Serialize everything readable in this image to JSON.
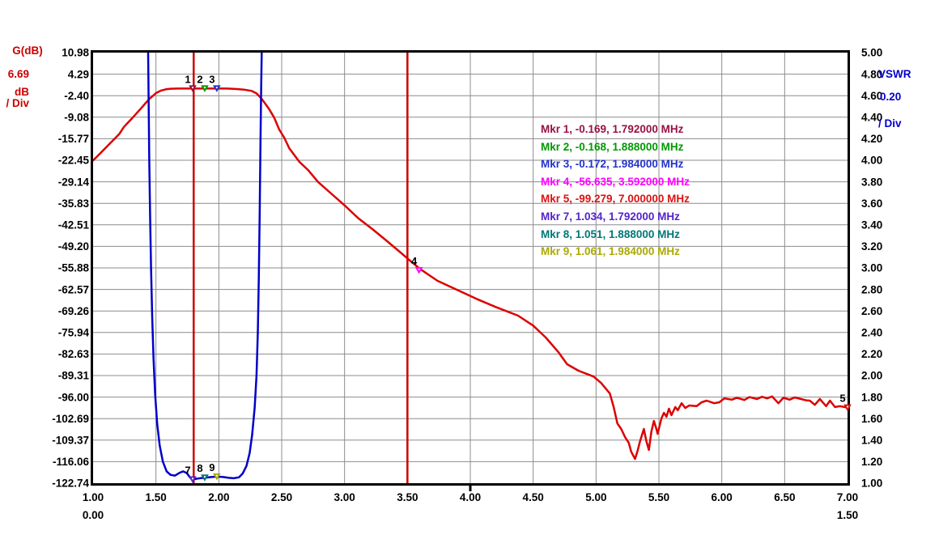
{
  "axes": {
    "left": {
      "title": "G(dB)",
      "per_div": "6.69",
      "unit": "dB",
      "div_label": "/ Div",
      "color": "#cc0000",
      "ticks": [
        "10.98",
        "4.29",
        "-2.40",
        "-9.08",
        "-15.77",
        "-22.45",
        "-29.14",
        "-35.83",
        "-42.51",
        "-49.20",
        "-55.88",
        "-62.57",
        "-69.26",
        "-75.94",
        "-82.63",
        "-89.31",
        "-96.00",
        "-102.69",
        "-109.37",
        "-116.06",
        "-122.74"
      ]
    },
    "right": {
      "title": "VSWR",
      "per_div": "0.20",
      "div_label": "/ Div",
      "color": "#0000cc",
      "ticks": [
        "5.00",
        "4.80",
        "4.60",
        "4.40",
        "4.20",
        "4.00",
        "3.80",
        "3.60",
        "3.40",
        "3.20",
        "3.00",
        "2.80",
        "2.60",
        "2.40",
        "2.20",
        "2.00",
        "1.80",
        "1.60",
        "1.40",
        "1.20",
        "1.00"
      ]
    },
    "bottom": {
      "ticks": [
        "1.00",
        "1.50",
        "2.00",
        "2.50",
        "3.00",
        "3.50",
        "4.00",
        "4.50",
        "5.00",
        "5.50",
        "6.00",
        "6.50",
        "7.00"
      ],
      "secondary_start": "0.00",
      "secondary_end": "1.50",
      "center_tick_value": "4.00"
    }
  },
  "legend": {
    "items": [
      {
        "text": "Mkr 1, -0.169, 1.792000 MHz",
        "color": "#991144"
      },
      {
        "text": "Mkr 2, -0.168, 1.888000 MHz",
        "color": "#009900"
      },
      {
        "text": "Mkr 3, -0.172, 1.984000 MHz",
        "color": "#2233cc"
      },
      {
        "text": "Mkr 4, -56.635, 3.592000 MHz",
        "color": "#ff00ff"
      },
      {
        "text": "Mkr 5, -99.279, 7.000000 MHz",
        "color": "#dd1111"
      },
      {
        "text": "Mkr 7, 1.034, 1.792000 MHz",
        "color": "#5522cc"
      },
      {
        "text": "Mkr 8, 1.051, 1.888000 MHz",
        "color": "#007777"
      },
      {
        "text": "Mkr 9, 1.061, 1.984000 MHz",
        "color": "#aaaa00"
      }
    ]
  },
  "chart_data": {
    "type": "line",
    "title": "",
    "x_axis": {
      "unit": "MHz",
      "min": 1.0,
      "max": 7.0,
      "tick_step": 0.5,
      "center_tick": 4.0
    },
    "y_left": {
      "label": "G(dB)",
      "min": -122.74,
      "max": 10.98,
      "per_div": 6.69,
      "divisions": 20
    },
    "y_right": {
      "label": "VSWR",
      "min": 1.0,
      "max": 5.0,
      "per_div": 0.2,
      "divisions": 20
    },
    "grid": {
      "color": "#8c8c8c",
      "on": true
    },
    "border_color": "#000000",
    "vlines": [
      {
        "x": 1.8,
        "color": "#cc0000"
      },
      {
        "x": 3.5,
        "color": "#cc0000"
      }
    ],
    "series": [
      {
        "name": "gain_db",
        "axis": "left",
        "color": "#dd0000",
        "width": 2.5,
        "points": [
          [
            1.0,
            -22.5
          ],
          [
            1.06,
            -20.2
          ],
          [
            1.12,
            -17.8
          ],
          [
            1.18,
            -15.4
          ],
          [
            1.21,
            -14.2
          ],
          [
            1.245,
            -12.1
          ],
          [
            1.31,
            -9.4
          ],
          [
            1.375,
            -6.6
          ],
          [
            1.42,
            -4.6
          ],
          [
            1.45,
            -3.3
          ],
          [
            1.48,
            -2.3
          ],
          [
            1.5,
            -1.6
          ],
          [
            1.54,
            -0.8
          ],
          [
            1.58,
            -0.4
          ],
          [
            1.62,
            -0.22
          ],
          [
            1.68,
            -0.18
          ],
          [
            1.74,
            -0.17
          ],
          [
            1.792,
            -0.169
          ],
          [
            1.888,
            -0.168
          ],
          [
            1.984,
            -0.172
          ],
          [
            2.06,
            -0.19
          ],
          [
            2.13,
            -0.3
          ],
          [
            2.2,
            -0.5
          ],
          [
            2.26,
            -0.9
          ],
          [
            2.3,
            -1.7
          ],
          [
            2.33,
            -2.9
          ],
          [
            2.36,
            -4.4
          ],
          [
            2.4,
            -6.6
          ],
          [
            2.44,
            -9.2
          ],
          [
            2.48,
            -12.9
          ],
          [
            2.52,
            -15.4
          ],
          [
            2.56,
            -18.7
          ],
          [
            2.64,
            -22.9
          ],
          [
            2.71,
            -25.5
          ],
          [
            2.79,
            -29.2
          ],
          [
            2.9,
            -33.0
          ],
          [
            3.01,
            -36.8
          ],
          [
            3.11,
            -40.5
          ],
          [
            3.22,
            -43.8
          ],
          [
            3.33,
            -47.3
          ],
          [
            3.43,
            -50.6
          ],
          [
            3.52,
            -53.6
          ],
          [
            3.6,
            -56.2
          ],
          [
            3.74,
            -59.9
          ],
          [
            3.9,
            -62.8
          ],
          [
            4.05,
            -65.5
          ],
          [
            4.2,
            -68.0
          ],
          [
            4.38,
            -70.7
          ],
          [
            4.5,
            -73.8
          ],
          [
            4.6,
            -77.5
          ],
          [
            4.7,
            -82.0
          ],
          [
            4.77,
            -85.8
          ],
          [
            4.86,
            -87.8
          ],
          [
            4.98,
            -89.6
          ],
          [
            5.04,
            -91.6
          ],
          [
            5.11,
            -94.9
          ],
          [
            5.14,
            -99.1
          ],
          [
            5.17,
            -104.2
          ],
          [
            5.2,
            -105.9
          ],
          [
            5.23,
            -108.4
          ],
          [
            5.26,
            -110.2
          ],
          [
            5.28,
            -113.0
          ],
          [
            5.31,
            -115.2
          ],
          [
            5.33,
            -112.7
          ],
          [
            5.35,
            -109.7
          ],
          [
            5.38,
            -105.9
          ],
          [
            5.4,
            -109.7
          ],
          [
            5.42,
            -112.4
          ],
          [
            5.44,
            -106.7
          ],
          [
            5.46,
            -103.4
          ],
          [
            5.48,
            -105.9
          ],
          [
            5.49,
            -107.4
          ],
          [
            5.52,
            -102.6
          ],
          [
            5.54,
            -100.9
          ],
          [
            5.56,
            -102.1
          ],
          [
            5.58,
            -99.6
          ],
          [
            5.6,
            -101.6
          ],
          [
            5.63,
            -99.1
          ],
          [
            5.65,
            -100.1
          ],
          [
            5.68,
            -97.9
          ],
          [
            5.71,
            -99.4
          ],
          [
            5.74,
            -98.6
          ],
          [
            5.8,
            -98.8
          ],
          [
            5.84,
            -97.6
          ],
          [
            5.88,
            -97.1
          ],
          [
            5.94,
            -97.9
          ],
          [
            5.98,
            -97.6
          ],
          [
            6.02,
            -96.4
          ],
          [
            6.08,
            -96.8
          ],
          [
            6.12,
            -96.2
          ],
          [
            6.18,
            -96.9
          ],
          [
            6.22,
            -96.0
          ],
          [
            6.28,
            -96.6
          ],
          [
            6.32,
            -95.9
          ],
          [
            6.36,
            -96.4
          ],
          [
            6.4,
            -95.8
          ],
          [
            6.45,
            -97.9
          ],
          [
            6.49,
            -96.2
          ],
          [
            6.54,
            -96.8
          ],
          [
            6.58,
            -96.1
          ],
          [
            6.63,
            -96.6
          ],
          [
            6.67,
            -97.0
          ],
          [
            6.7,
            -97.1
          ],
          [
            6.74,
            -98.4
          ],
          [
            6.78,
            -96.6
          ],
          [
            6.83,
            -98.8
          ],
          [
            6.86,
            -97.1
          ],
          [
            6.9,
            -99.1
          ],
          [
            6.94,
            -98.8
          ],
          [
            7.0,
            -99.279
          ]
        ]
      },
      {
        "name": "vswr",
        "axis": "right",
        "color": "#0000c8",
        "width": 2.5,
        "points": [
          [
            1.438,
            5.0
          ],
          [
            1.442,
            4.5
          ],
          [
            1.447,
            4.0
          ],
          [
            1.453,
            3.5
          ],
          [
            1.461,
            3.0
          ],
          [
            1.47,
            2.55
          ],
          [
            1.481,
            2.15
          ],
          [
            1.494,
            1.82
          ],
          [
            1.51,
            1.55
          ],
          [
            1.53,
            1.35
          ],
          [
            1.555,
            1.2
          ],
          [
            1.585,
            1.11
          ],
          [
            1.615,
            1.078
          ],
          [
            1.65,
            1.07
          ],
          [
            1.685,
            1.095
          ],
          [
            1.715,
            1.11
          ],
          [
            1.745,
            1.095
          ],
          [
            1.77,
            1.055
          ],
          [
            1.792,
            1.034
          ],
          [
            1.83,
            1.043
          ],
          [
            1.86,
            1.048
          ],
          [
            1.888,
            1.051
          ],
          [
            1.94,
            1.057
          ],
          [
            1.984,
            1.061
          ],
          [
            2.03,
            1.058
          ],
          [
            2.08,
            1.05
          ],
          [
            2.12,
            1.046
          ],
          [
            2.16,
            1.055
          ],
          [
            2.19,
            1.09
          ],
          [
            2.22,
            1.16
          ],
          [
            2.245,
            1.28
          ],
          [
            2.265,
            1.45
          ],
          [
            2.285,
            1.7
          ],
          [
            2.3,
            2.0
          ],
          [
            2.31,
            2.4
          ],
          [
            2.318,
            2.9
          ],
          [
            2.325,
            3.5
          ],
          [
            2.331,
            4.1
          ],
          [
            2.336,
            4.6
          ],
          [
            2.341,
            5.0
          ]
        ]
      }
    ],
    "markers": [
      {
        "label": "1",
        "axis": "left",
        "x": 1.792,
        "y": -0.169,
        "color": "#991144"
      },
      {
        "label": "2",
        "axis": "left",
        "x": 1.888,
        "y": -0.168,
        "color": "#009900"
      },
      {
        "label": "3",
        "axis": "left",
        "x": 1.984,
        "y": -0.172,
        "color": "#2233cc"
      },
      {
        "label": "4",
        "axis": "left",
        "x": 3.592,
        "y": -56.635,
        "color": "#ff00ff"
      },
      {
        "label": "5",
        "axis": "left",
        "x": 7.0,
        "y": -99.279,
        "color": "#dd1111"
      },
      {
        "label": "7",
        "axis": "right",
        "x": 1.792,
        "y": 1.034,
        "color": "#5522cc"
      },
      {
        "label": "8",
        "axis": "right",
        "x": 1.888,
        "y": 1.051,
        "color": "#007777"
      },
      {
        "label": "9",
        "axis": "right",
        "x": 1.984,
        "y": 1.061,
        "color": "#aaaa00"
      }
    ]
  }
}
